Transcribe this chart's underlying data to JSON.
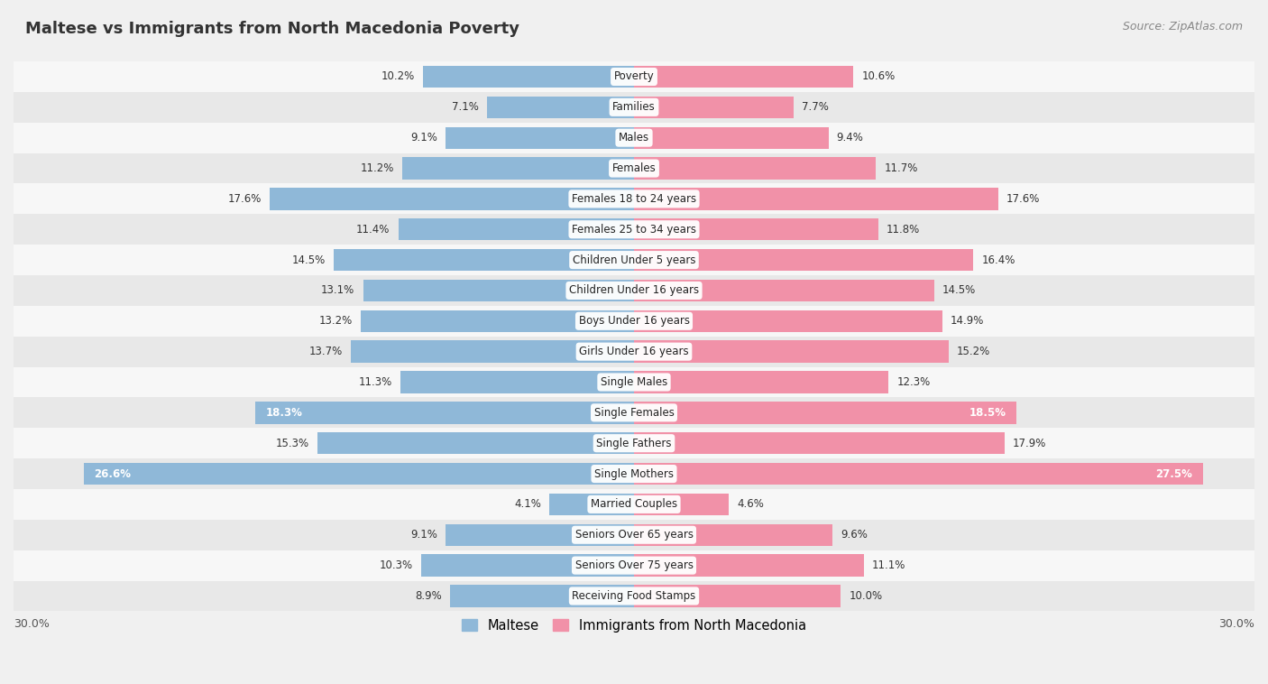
{
  "title": "Maltese vs Immigrants from North Macedonia Poverty",
  "source": "Source: ZipAtlas.com",
  "categories": [
    "Poverty",
    "Families",
    "Males",
    "Females",
    "Females 18 to 24 years",
    "Females 25 to 34 years",
    "Children Under 5 years",
    "Children Under 16 years",
    "Boys Under 16 years",
    "Girls Under 16 years",
    "Single Males",
    "Single Females",
    "Single Fathers",
    "Single Mothers",
    "Married Couples",
    "Seniors Over 65 years",
    "Seniors Over 75 years",
    "Receiving Food Stamps"
  ],
  "maltese_values": [
    10.2,
    7.1,
    9.1,
    11.2,
    17.6,
    11.4,
    14.5,
    13.1,
    13.2,
    13.7,
    11.3,
    18.3,
    15.3,
    26.6,
    4.1,
    9.1,
    10.3,
    8.9
  ],
  "immigrants_values": [
    10.6,
    7.7,
    9.4,
    11.7,
    17.6,
    11.8,
    16.4,
    14.5,
    14.9,
    15.2,
    12.3,
    18.5,
    17.9,
    27.5,
    4.6,
    9.6,
    11.1,
    10.0
  ],
  "maltese_color": "#8fb8d8",
  "immigrants_color": "#f191a8",
  "highlight_rows": [
    11,
    13
  ],
  "x_max": 30.0,
  "background_color": "#f0f0f0",
  "row_bg_even": "#f7f7f7",
  "row_bg_odd": "#e8e8e8",
  "legend_labels": [
    "Maltese",
    "Immigrants from North Macedonia"
  ],
  "bar_height": 0.72
}
